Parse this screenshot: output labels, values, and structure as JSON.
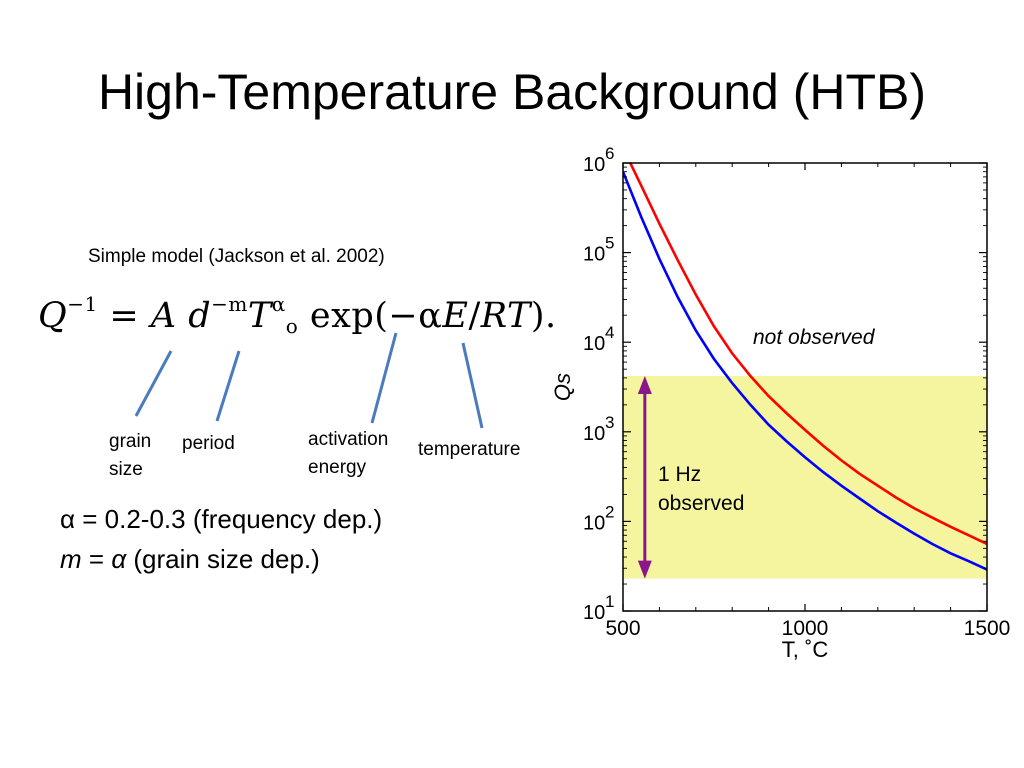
{
  "slide": {
    "title": "High-Temperature Background (HTB)",
    "subtitle": "Simple model  (Jackson et al. 2002)"
  },
  "equation": {
    "lhs": "Q",
    "lhs_exp": "−1",
    "eq": "=",
    "a": "A",
    "d": "d",
    "d_exp": "−m",
    "t": "T",
    "t_exp": "α",
    "t_sub": "o",
    "exp_open": "exp(−α",
    "e": "E",
    "slash": "/",
    "rt": "RT",
    "exp_close": ")."
  },
  "terms": {
    "grain_line1": "grain",
    "grain_line2": "size",
    "period": "period",
    "activation_line1": "activation",
    "activation_line2": "energy",
    "temperature": "temperature"
  },
  "params": {
    "alpha_symbol": "α",
    "alpha_text": " = 0.2-0.3 (frequency dep.)",
    "m_symbol": "m",
    "m_eq": " = ",
    "m_alpha": "α",
    "m_text": "  (grain size dep.)"
  },
  "colors": {
    "annotation_line": "#4a7bbf",
    "band": "#f5f5a0",
    "red_curve": "#ff0000",
    "blue_curve": "#0000ff",
    "arrow": "#8b158b"
  },
  "chart_data": {
    "type": "line",
    "xlabel": "T, ˚C",
    "ylabel": "Qs",
    "xlim": [
      500,
      1500
    ],
    "ylim": [
      10,
      1000000
    ],
    "yscale": "log",
    "x_ticks": [
      500,
      1000,
      1500
    ],
    "x_tick_labels": [
      "500",
      "1000",
      "1500"
    ],
    "y_ticks": [
      10,
      100,
      1000,
      10000,
      100000,
      1000000
    ],
    "y_tick_labels": [
      {
        "base": "10",
        "exp": "1"
      },
      {
        "base": "10",
        "exp": "2"
      },
      {
        "base": "10",
        "exp": "3"
      },
      {
        "base": "10",
        "exp": "4"
      },
      {
        "base": "10",
        "exp": "5"
      },
      {
        "base": "10",
        "exp": "6"
      }
    ],
    "grid": false,
    "series": [
      {
        "color": "#ff0000",
        "x": [
          520,
          550,
          600,
          650,
          700,
          750,
          800,
          850,
          900,
          950,
          1000,
          1050,
          1100,
          1150,
          1200,
          1250,
          1300,
          1350,
          1400,
          1450,
          1500
        ],
        "y": [
          1000000,
          560000,
          210000,
          83000,
          34000,
          15000,
          7500,
          4200,
          2500,
          1600,
          1050,
          700,
          480,
          340,
          250,
          185,
          140,
          110,
          87,
          70,
          56
        ]
      },
      {
        "color": "#0000ff",
        "x": [
          500,
          550,
          600,
          650,
          700,
          750,
          800,
          850,
          900,
          950,
          1000,
          1050,
          1100,
          1150,
          1200,
          1250,
          1300,
          1350,
          1400,
          1450,
          1500
        ],
        "y": [
          800000,
          250000,
          85000,
          32000,
          13500,
          6500,
          3500,
          2000,
          1200,
          780,
          520,
          355,
          250,
          180,
          130,
          97,
          73,
          56,
          44,
          36,
          29
        ]
      }
    ],
    "band": {
      "y0": 23,
      "y1": 4200
    },
    "arrow": {
      "x": 560,
      "y0": 23,
      "y1": 4200
    },
    "annotations": {
      "not_observed": "not observed",
      "hz_line1": "1 Hz",
      "hz_line2": "observed"
    }
  }
}
